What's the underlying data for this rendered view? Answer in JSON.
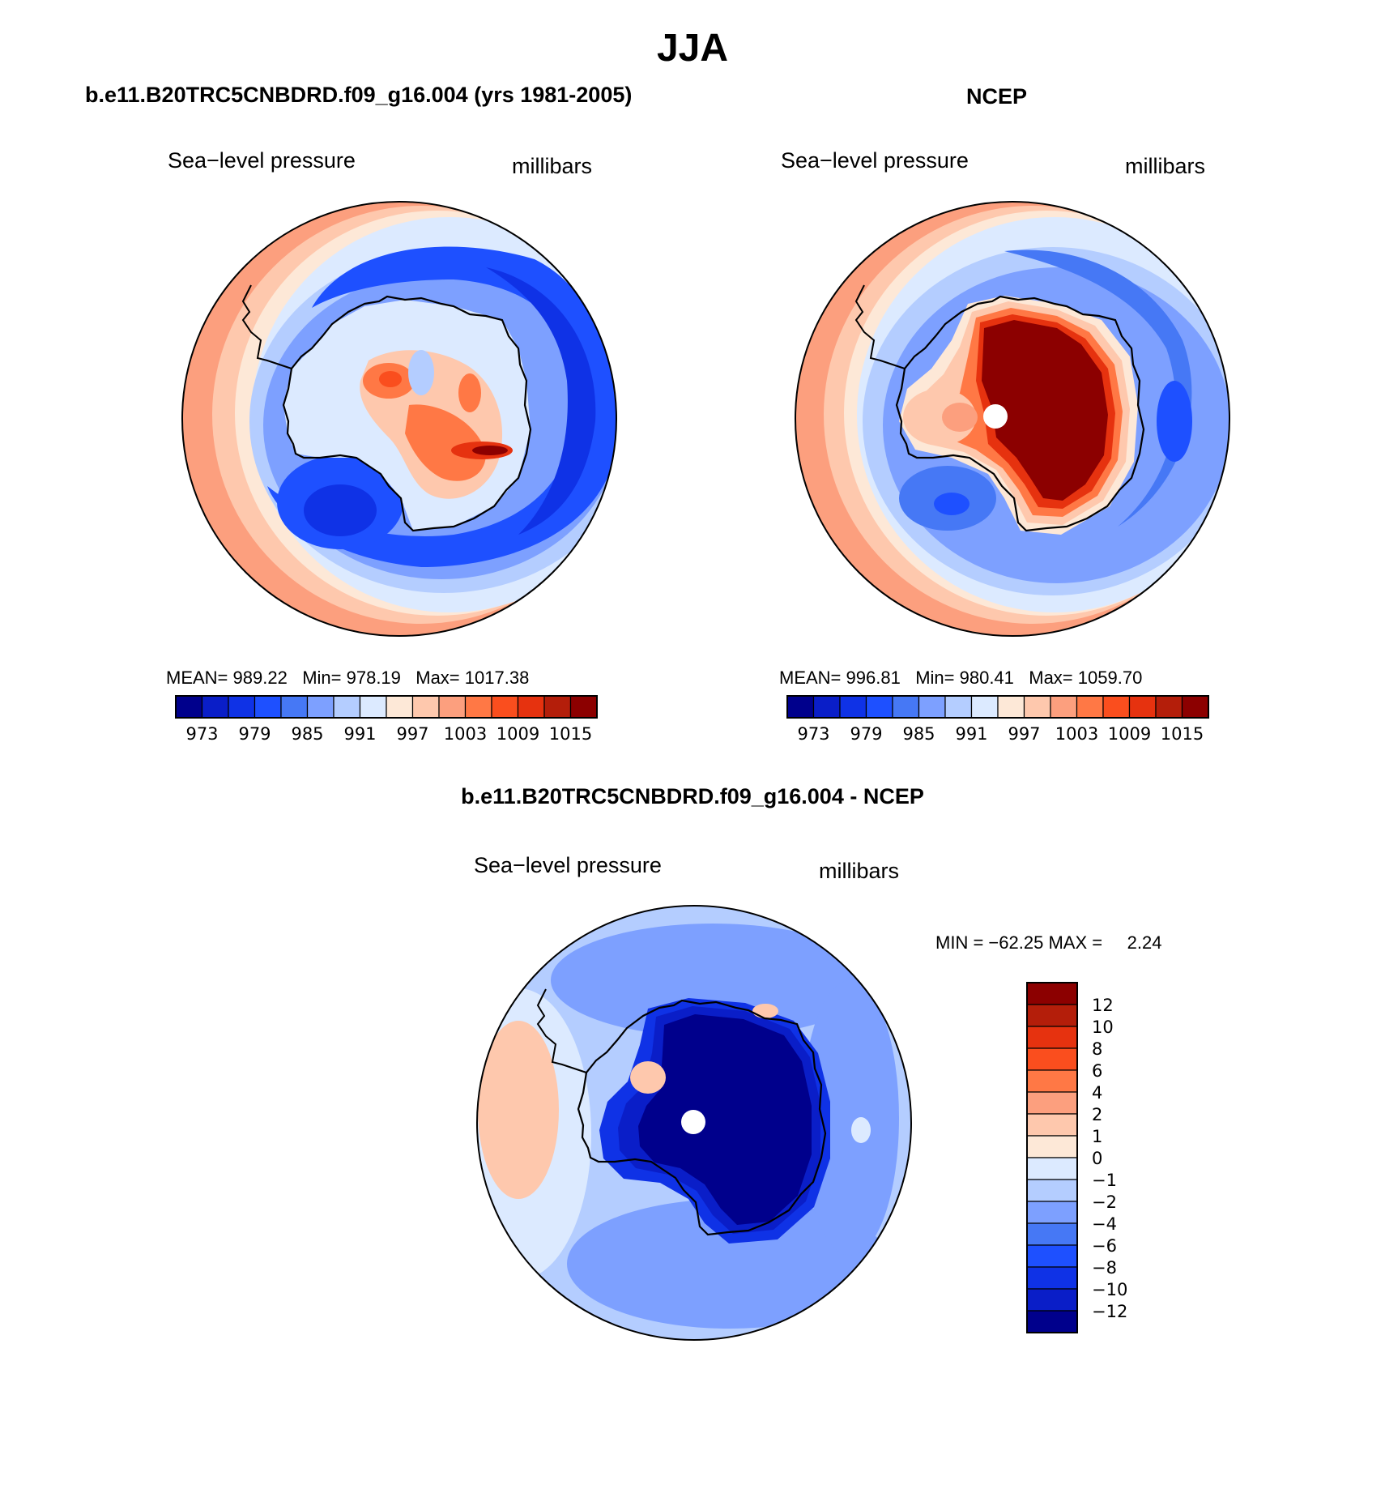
{
  "title": "JJA",
  "colors": {
    "abs_scale": [
      "#00008c",
      "#0a1ec8",
      "#0f32e6",
      "#1e50ff",
      "#4678f5",
      "#7da0ff",
      "#b4cdff",
      "#dceaff",
      "#fde8d7",
      "#fec8ad",
      "#fc9f7e",
      "#ff7845",
      "#fa4e1e",
      "#e6320f",
      "#b41e0a",
      "#8c0000"
    ],
    "diff_scale": [
      "#00008c",
      "#0a1ec8",
      "#0f32e6",
      "#1e50ff",
      "#4678f5",
      "#7da0ff",
      "#b4cdff",
      "#dceaff",
      "#fde8d7",
      "#fec8ad",
      "#fc9f7e",
      "#ff7845",
      "#fa4e1e",
      "#e6320f",
      "#b41e0a",
      "#8c0000"
    ]
  },
  "chart_data": [
    {
      "type": "heatmap",
      "projection": "south polar stereographic",
      "title": "b.e11.B20TRC5CNBDRD.f09_g16.004 (yrs 1981-2005)",
      "variable": "Sea−level pressure",
      "units": "millibars",
      "stats": {
        "mean_label": "MEAN=",
        "mean": "989.22",
        "min_label": "Min=",
        "min": "978.19",
        "max_label": "Max=",
        "max": "1017.38"
      },
      "colorbar": {
        "orientation": "horizontal",
        "levels": [
          970,
          973,
          976,
          979,
          982,
          985,
          988,
          991,
          994,
          997,
          1000,
          1003,
          1006,
          1009,
          1012,
          1015
        ],
        "tick_labels": [
          "973",
          "979",
          "985",
          "991",
          "997",
          "1003",
          "1009",
          "1015"
        ]
      }
    },
    {
      "type": "heatmap",
      "projection": "south polar stereographic",
      "title": "NCEP",
      "variable": "Sea−level pressure",
      "units": "millibars",
      "stats": {
        "mean_label": "MEAN=",
        "mean": "996.81",
        "min_label": "Min=",
        "min": "980.41",
        "max_label": "Max=",
        "max": "1059.70"
      },
      "colorbar": {
        "orientation": "horizontal",
        "levels": [
          970,
          973,
          976,
          979,
          982,
          985,
          988,
          991,
          994,
          997,
          1000,
          1003,
          1006,
          1009,
          1012,
          1015
        ],
        "tick_labels": [
          "973",
          "979",
          "985",
          "991",
          "997",
          "1003",
          "1009",
          "1015"
        ]
      }
    },
    {
      "type": "heatmap",
      "projection": "south polar stereographic",
      "title": "b.e11.B20TRC5CNBDRD.f09_g16.004 - NCEP",
      "variable": "Sea−level pressure",
      "units": "millibars",
      "stats": {
        "min_label": "MIN =",
        "min": "−62.25",
        "max_label": "MAX =",
        "max": "2.24"
      },
      "colorbar": {
        "orientation": "vertical",
        "levels": [
          -12,
          -10,
          -8,
          -6,
          -4,
          -2,
          -1,
          0,
          1,
          2,
          4,
          6,
          8,
          10,
          12
        ],
        "tick_labels": [
          "12",
          "10",
          "8",
          "6",
          "4",
          "2",
          "1",
          "0",
          "−1",
          "−2",
          "−4",
          "−6",
          "−8",
          "−10",
          "−12"
        ]
      }
    }
  ]
}
